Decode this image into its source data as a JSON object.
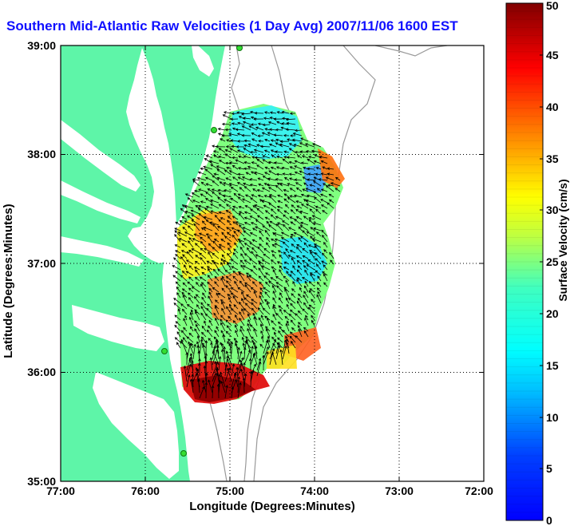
{
  "title": "Southern Mid-Atlantic Raw Velocities (1 Day Avg) 2007/11/06 1600 EST",
  "map": {
    "xlabel": "Longitude (Degrees:Minutes)",
    "ylabel": "Latitude (Degrees:Minutes)",
    "x_ticks": [
      "77:00",
      "76:00",
      "75:00",
      "74:00",
      "73:00",
      "72:00"
    ],
    "y_ticks": [
      "39:00",
      "38:00",
      "37:00",
      "36:00",
      "35:00"
    ],
    "xlim": [
      -77,
      -72
    ],
    "ylim": [
      35,
      39
    ],
    "grid": "dotted",
    "land_color": "#5ef5a8",
    "water_color": "#ffffff",
    "contour_color": "#999999",
    "station_color": "#33dd33"
  },
  "colorbar": {
    "label": "Surface Velocity (cm/s)",
    "ticks": [
      "0",
      "5",
      "10",
      "15",
      "20",
      "25",
      "30",
      "35",
      "40",
      "45",
      "50"
    ],
    "range": [
      0,
      50
    ],
    "colormap": "jet"
  }
}
